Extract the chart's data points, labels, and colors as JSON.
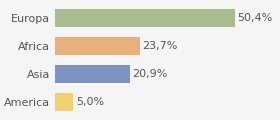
{
  "categories": [
    "America",
    "Asia",
    "Africa",
    "Europa"
  ],
  "values": [
    5.0,
    20.9,
    23.7,
    50.4
  ],
  "labels": [
    "5,0%",
    "20,9%",
    "23,7%",
    "50,4%"
  ],
  "bar_colors": [
    "#f0d070",
    "#7b93c0",
    "#e8b07a",
    "#a8bc8f"
  ],
  "background_color": "#f5f5f5",
  "xlim": [
    0,
    62
  ],
  "label_fontsize": 8,
  "category_fontsize": 8
}
